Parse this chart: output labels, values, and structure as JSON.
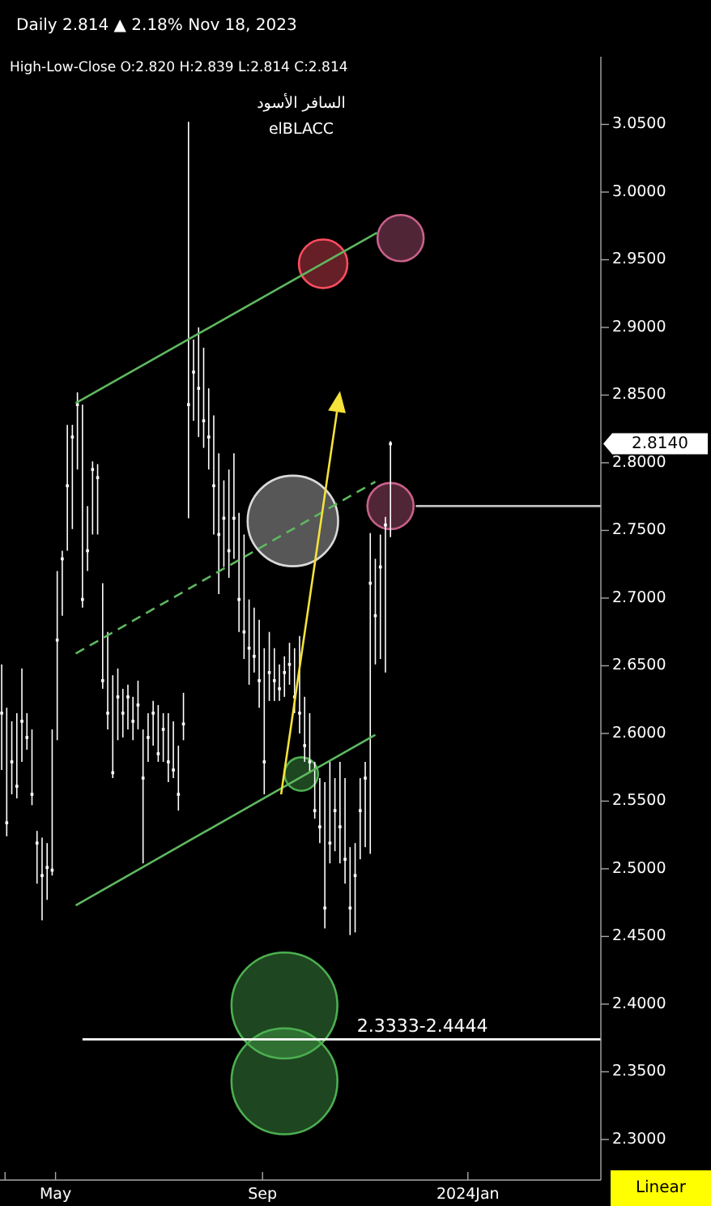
{
  "chart_data": {
    "type": "scatter",
    "title": "Daily 2.814 ▲ 2.18% Nov 18, 2023",
    "subtitle": "High-Low-Close O:2.820 H:2.839 L:2.814 C:2.814",
    "annotations": [
      "السافر الأسود",
      "elBLACC",
      {
        "text": "2.3333-2.4444",
        "x": "2023-12-05",
        "y": 2.374
      },
      "2.8140",
      "Linear"
    ],
    "color": "#ffffff",
    "marker": "square",
    "x": [
      "2023-03-30",
      "2023-04-02",
      "2023-04-05",
      "2023-04-08",
      "2023-04-11",
      "2023-04-14",
      "2023-04-17",
      "2023-04-20",
      "2023-04-23",
      "2023-04-26",
      "2023-04-29",
      "2023-05-02",
      "2023-05-05",
      "2023-05-08",
      "2023-05-11",
      "2023-05-14",
      "2023-05-17",
      "2023-05-20",
      "2023-05-23",
      "2023-05-26",
      "2023-05-29",
      "2023-06-01",
      "2023-06-04",
      "2023-06-07",
      "2023-06-10",
      "2023-06-13",
      "2023-06-16",
      "2023-06-19",
      "2023-06-22",
      "2023-06-25",
      "2023-06-28",
      "2023-07-01",
      "2023-07-04",
      "2023-07-07",
      "2023-07-10",
      "2023-07-13",
      "2023-07-16",
      "2023-07-19",
      "2023-07-22",
      "2023-07-25",
      "2023-07-28",
      "2023-07-31",
      "2023-08-03",
      "2023-08-06",
      "2023-08-09",
      "2023-08-12",
      "2023-08-15",
      "2023-08-18",
      "2023-08-21",
      "2023-08-24",
      "2023-08-27",
      "2023-08-30",
      "2023-09-02",
      "2023-09-05",
      "2023-09-08",
      "2023-09-11",
      "2023-09-14",
      "2023-09-17",
      "2023-09-20",
      "2023-09-23",
      "2023-09-26",
      "2023-09-29",
      "2023-10-02",
      "2023-10-05",
      "2023-10-08",
      "2023-10-11",
      "2023-10-14",
      "2023-10-17",
      "2023-10-20",
      "2023-10-23",
      "2023-10-26",
      "2023-10-29",
      "2023-11-01",
      "2023-11-04",
      "2023-11-07",
      "2023-11-10",
      "2023-11-13",
      "2023-11-16"
    ],
    "values": [
      2.615,
      2.534,
      2.579,
      2.561,
      2.609,
      2.597,
      2.555,
      2.519,
      2.495,
      2.501,
      2.499,
      2.669,
      2.729,
      2.783,
      2.819,
      2.843,
      2.699,
      2.735,
      2.795,
      2.789,
      2.639,
      2.615,
      2.571,
      2.627,
      2.615,
      2.627,
      2.609,
      2.621,
      2.567,
      2.597,
      2.615,
      2.585,
      2.603,
      2.579,
      2.573,
      2.555,
      2.607,
      2.843,
      2.867,
      2.855,
      2.831,
      2.819,
      2.783,
      2.747,
      2.759,
      2.735,
      2.759,
      2.699,
      2.675,
      2.663,
      2.657,
      2.639,
      2.579,
      2.645,
      2.639,
      2.633,
      2.645,
      2.651,
      2.627,
      2.615,
      2.591,
      2.579,
      2.543,
      2.531,
      2.471,
      2.519,
      2.543,
      2.531,
      2.507,
      2.471,
      2.495,
      2.543,
      2.567,
      2.711,
      2.687,
      2.723,
      2.754,
      2.814
    ],
    "errors": [
      [
        2.573,
        2.651
      ],
      [
        2.524,
        2.619
      ],
      [
        2.555,
        2.609
      ],
      [
        2.552,
        2.615
      ],
      [
        2.579,
        2.648
      ],
      [
        2.588,
        2.615
      ],
      [
        2.547,
        2.603
      ],
      [
        2.489,
        2.528
      ],
      [
        2.462,
        2.523
      ],
      [
        2.477,
        2.519
      ],
      [
        2.495,
        2.603
      ],
      [
        2.595,
        2.72
      ],
      [
        2.687,
        2.735
      ],
      [
        2.735,
        2.828
      ],
      [
        2.751,
        2.828
      ],
      [
        2.795,
        2.852
      ],
      [
        2.693,
        2.843
      ],
      [
        2.72,
        2.768
      ],
      [
        2.747,
        2.801
      ],
      [
        2.747,
        2.799
      ],
      [
        2.633,
        2.711
      ],
      [
        2.603,
        2.675
      ],
      [
        2.567,
        2.643
      ],
      [
        2.595,
        2.648
      ],
      [
        2.597,
        2.633
      ],
      [
        2.603,
        2.636
      ],
      [
        2.595,
        2.627
      ],
      [
        2.603,
        2.639
      ],
      [
        2.504,
        2.603
      ],
      [
        2.579,
        2.615
      ],
      [
        2.591,
        2.624
      ],
      [
        2.579,
        2.621
      ],
      [
        2.579,
        2.615
      ],
      [
        2.564,
        2.615
      ],
      [
        2.567,
        2.609
      ],
      [
        2.543,
        2.591
      ],
      [
        2.595,
        2.63
      ],
      [
        2.759,
        3.052
      ],
      [
        2.831,
        2.891
      ],
      [
        2.819,
        2.9
      ],
      [
        2.811,
        2.885
      ],
      [
        2.795,
        2.855
      ],
      [
        2.747,
        2.835
      ],
      [
        2.703,
        2.807
      ],
      [
        2.723,
        2.787
      ],
      [
        2.715,
        2.795
      ],
      [
        2.729,
        2.807
      ],
      [
        2.675,
        2.763
      ],
      [
        2.655,
        2.747
      ],
      [
        2.636,
        2.699
      ],
      [
        2.645,
        2.693
      ],
      [
        2.619,
        2.684
      ],
      [
        2.555,
        2.663
      ],
      [
        2.624,
        2.675
      ],
      [
        2.624,
        2.663
      ],
      [
        2.624,
        2.651
      ],
      [
        2.627,
        2.657
      ],
      [
        2.636,
        2.667
      ],
      [
        2.615,
        2.663
      ],
      [
        2.6,
        2.672
      ],
      [
        2.579,
        2.627
      ],
      [
        2.571,
        2.615
      ],
      [
        2.537,
        2.579
      ],
      [
        2.519,
        2.567
      ],
      [
        2.456,
        2.564
      ],
      [
        2.504,
        2.579
      ],
      [
        2.513,
        2.567
      ],
      [
        2.504,
        2.579
      ],
      [
        2.489,
        2.567
      ],
      [
        2.451,
        2.516
      ],
      [
        2.453,
        2.519
      ],
      [
        2.507,
        2.567
      ],
      [
        2.516,
        2.579
      ],
      [
        2.511,
        2.748
      ],
      [
        2.651,
        2.729
      ],
      [
        2.655,
        2.747
      ],
      [
        2.645,
        2.76
      ],
      [
        2.745,
        2.816
      ]
    ],
    "series": [
      {
        "type": "bubble",
        "marker": "circle",
        "x": [
          "2023-10-07",
          "2023-11-22",
          "2023-09-19",
          "2023-11-16",
          "2023-09-24",
          "2023-09-14",
          "2023-09-14"
        ],
        "values": [
          2.947,
          2.966,
          2.757,
          2.768,
          2.57,
          2.399,
          2.343
        ],
        "sizes": [
          0.21,
          0.19,
          0.73,
          0.19,
          0.1,
          1,
          1
        ],
        "colors": [
          "#ff4d5e",
          "#c9608a",
          "#d9d9d9",
          "#c9608a",
          "#4caf50",
          "#4caf50",
          "#4caf50"
        ]
      },
      {
        "type": "line",
        "x": [
          "2023-05-13",
          "2023-11-08"
        ],
        "values": [
          2.844,
          2.97
        ],
        "color": "#5fb85f",
        "marker": "none"
      },
      {
        "type": "line",
        "x": [
          "2023-05-13",
          "2023-11-07"
        ],
        "values": [
          2.659,
          2.786
        ],
        "color": "#5fb85f",
        "line_style": "dashed",
        "marker": "none"
      },
      {
        "type": "line",
        "x": [
          "2023-05-13",
          "2023-11-07"
        ],
        "values": [
          2.473,
          2.599
        ],
        "color": "#5fb85f",
        "marker": "none"
      },
      {
        "type": "line",
        "x": [
          "2023-05-17",
          "2024-03-20"
        ],
        "values": [
          2.374,
          2.374
        ],
        "color": "#ffffff",
        "marker": "none"
      },
      {
        "type": "line",
        "x": [
          "2023-12-01",
          "2024-03-20"
        ],
        "values": [
          2.768,
          2.768
        ],
        "color": "#c0c0c0",
        "marker": "none"
      }
    ],
    "xlim": [
      "2023-03-29",
      "2024-03-20"
    ],
    "xticks": [
      {
        "value": "2023-04-01",
        "label": null
      },
      {
        "value": "2023-05-01",
        "label": "May"
      },
      {
        "value": "2023-09-01",
        "label": "Sep"
      },
      {
        "value": "2024-01-01",
        "label": "2024Jan"
      }
    ],
    "ylim": [
      2.27,
      3.1
    ],
    "yticks": [
      {
        "value": 2.3,
        "label": "2.3000"
      },
      {
        "value": 2.35,
        "label": "2.3500"
      },
      {
        "value": 2.4,
        "label": "2.4000"
      },
      {
        "value": 2.45,
        "label": "2.4500"
      },
      {
        "value": 2.5,
        "label": "2.5000"
      },
      {
        "value": 2.55,
        "label": "2.5500"
      },
      {
        "value": 2.6,
        "label": "2.6000"
      },
      {
        "value": 2.65,
        "label": "2.6500"
      },
      {
        "value": 2.7,
        "label": "2.7000"
      },
      {
        "value": 2.75,
        "label": "2.7500"
      },
      {
        "value": 2.8,
        "label": "2.8000"
      },
      {
        "value": 2.85,
        "label": "2.8500"
      },
      {
        "value": 2.9,
        "label": "2.9000"
      },
      {
        "value": 2.95,
        "label": "2.9500"
      },
      {
        "value": 3.0,
        "label": "3.0000"
      },
      {
        "value": 3.05,
        "label": "3.0500"
      }
    ]
  }
}
